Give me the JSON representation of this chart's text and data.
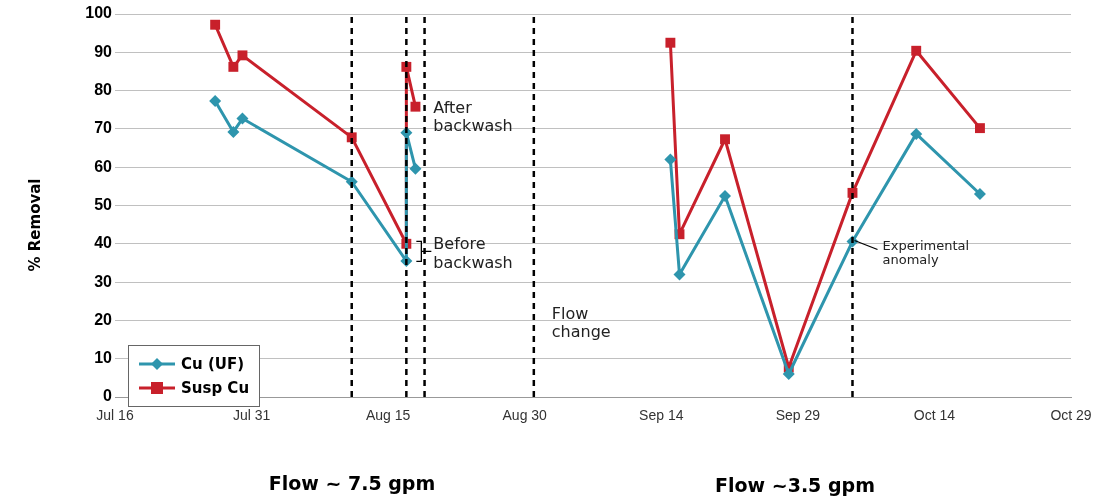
{
  "chart_data": {
    "type": "line",
    "ylabel": "% Removal",
    "xlim": [
      "--07-16",
      "--10-29"
    ],
    "xticks": [
      {
        "value": "--07-16",
        "label": "Jul 16"
      },
      {
        "value": "--07-31",
        "label": "Jul 31"
      },
      {
        "value": "--08-15",
        "label": "Aug 15"
      },
      {
        "value": "--08-30",
        "label": "Aug 30"
      },
      {
        "value": "--09-14",
        "label": "Sep 14"
      },
      {
        "value": "--09-29",
        "label": "Sep 29"
      },
      {
        "value": "--10-14",
        "label": "Oct 14"
      },
      {
        "value": "--10-29",
        "label": "Oct 29"
      }
    ],
    "ylim": [
      0,
      100
    ],
    "yticks": [
      0,
      10,
      20,
      30,
      40,
      50,
      60,
      70,
      80,
      90,
      100
    ],
    "grid": "y",
    "legend": "bottom left",
    "series": [
      {
        "name": "Cu (UF)",
        "color": "#2e95ad",
        "marker": "diamond",
        "x": [
          "--07-27",
          "--07-29",
          "--07-30",
          "--08-11",
          "--08-17",
          "--08-17",
          "--08-18",
          "--08-31",
          "--09-15",
          "--09-16",
          "--09-21",
          "--09-28",
          "--10-05",
          "--10-12",
          "--10-19"
        ],
        "values": [
          77.3,
          69.2,
          72.7,
          56.2,
          35.5,
          69,
          59.6,
          null,
          62,
          32,
          52.5,
          6,
          40.6,
          68.7,
          53
        ]
      },
      {
        "name": "Susp Cu",
        "color": "#c8202b",
        "marker": "square",
        "x": [
          "--07-27",
          "--07-29",
          "--07-30",
          "--08-11",
          "--08-17",
          "--08-17",
          "--08-18",
          "--08-31",
          "--09-15",
          "--09-16",
          "--09-21",
          "--09-28",
          "--10-05",
          "--10-12",
          "--10-19"
        ],
        "values": [
          97.2,
          86.2,
          89.2,
          67.8,
          40,
          86.2,
          75.8,
          null,
          92.5,
          42.5,
          67.3,
          7.7,
          53.3,
          90.4,
          70.2
        ]
      }
    ],
    "ref_lines": [
      {
        "axis": "x",
        "value": "--08-11",
        "color": "#000000",
        "line_style": "dashed"
      },
      {
        "axis": "x",
        "value": "--08-17",
        "color": "#000000",
        "line_style": "dashed"
      },
      {
        "axis": "x",
        "value": "--08-19",
        "color": "#000000",
        "line_style": "dashed"
      },
      {
        "axis": "x",
        "value": "--08-31",
        "color": "#000000",
        "line_style": "dashed"
      },
      {
        "axis": "x",
        "value": "--10-05",
        "color": "#000000",
        "line_style": "dashed"
      }
    ],
    "annotations": [
      {
        "text": "After backwash",
        "x": "--08-17",
        "y": 69
      },
      {
        "text": "Before backwash",
        "x": "--08-17",
        "y": 38
      },
      {
        "text": "Flow change",
        "x": "--08-31",
        "y": 10
      },
      {
        "text": "Experimental anomaly",
        "x": "--10-05",
        "y": 40.6
      },
      "Flow ~ 7.5 gpm",
      "Flow ~3.5 gpm"
    ]
  }
}
